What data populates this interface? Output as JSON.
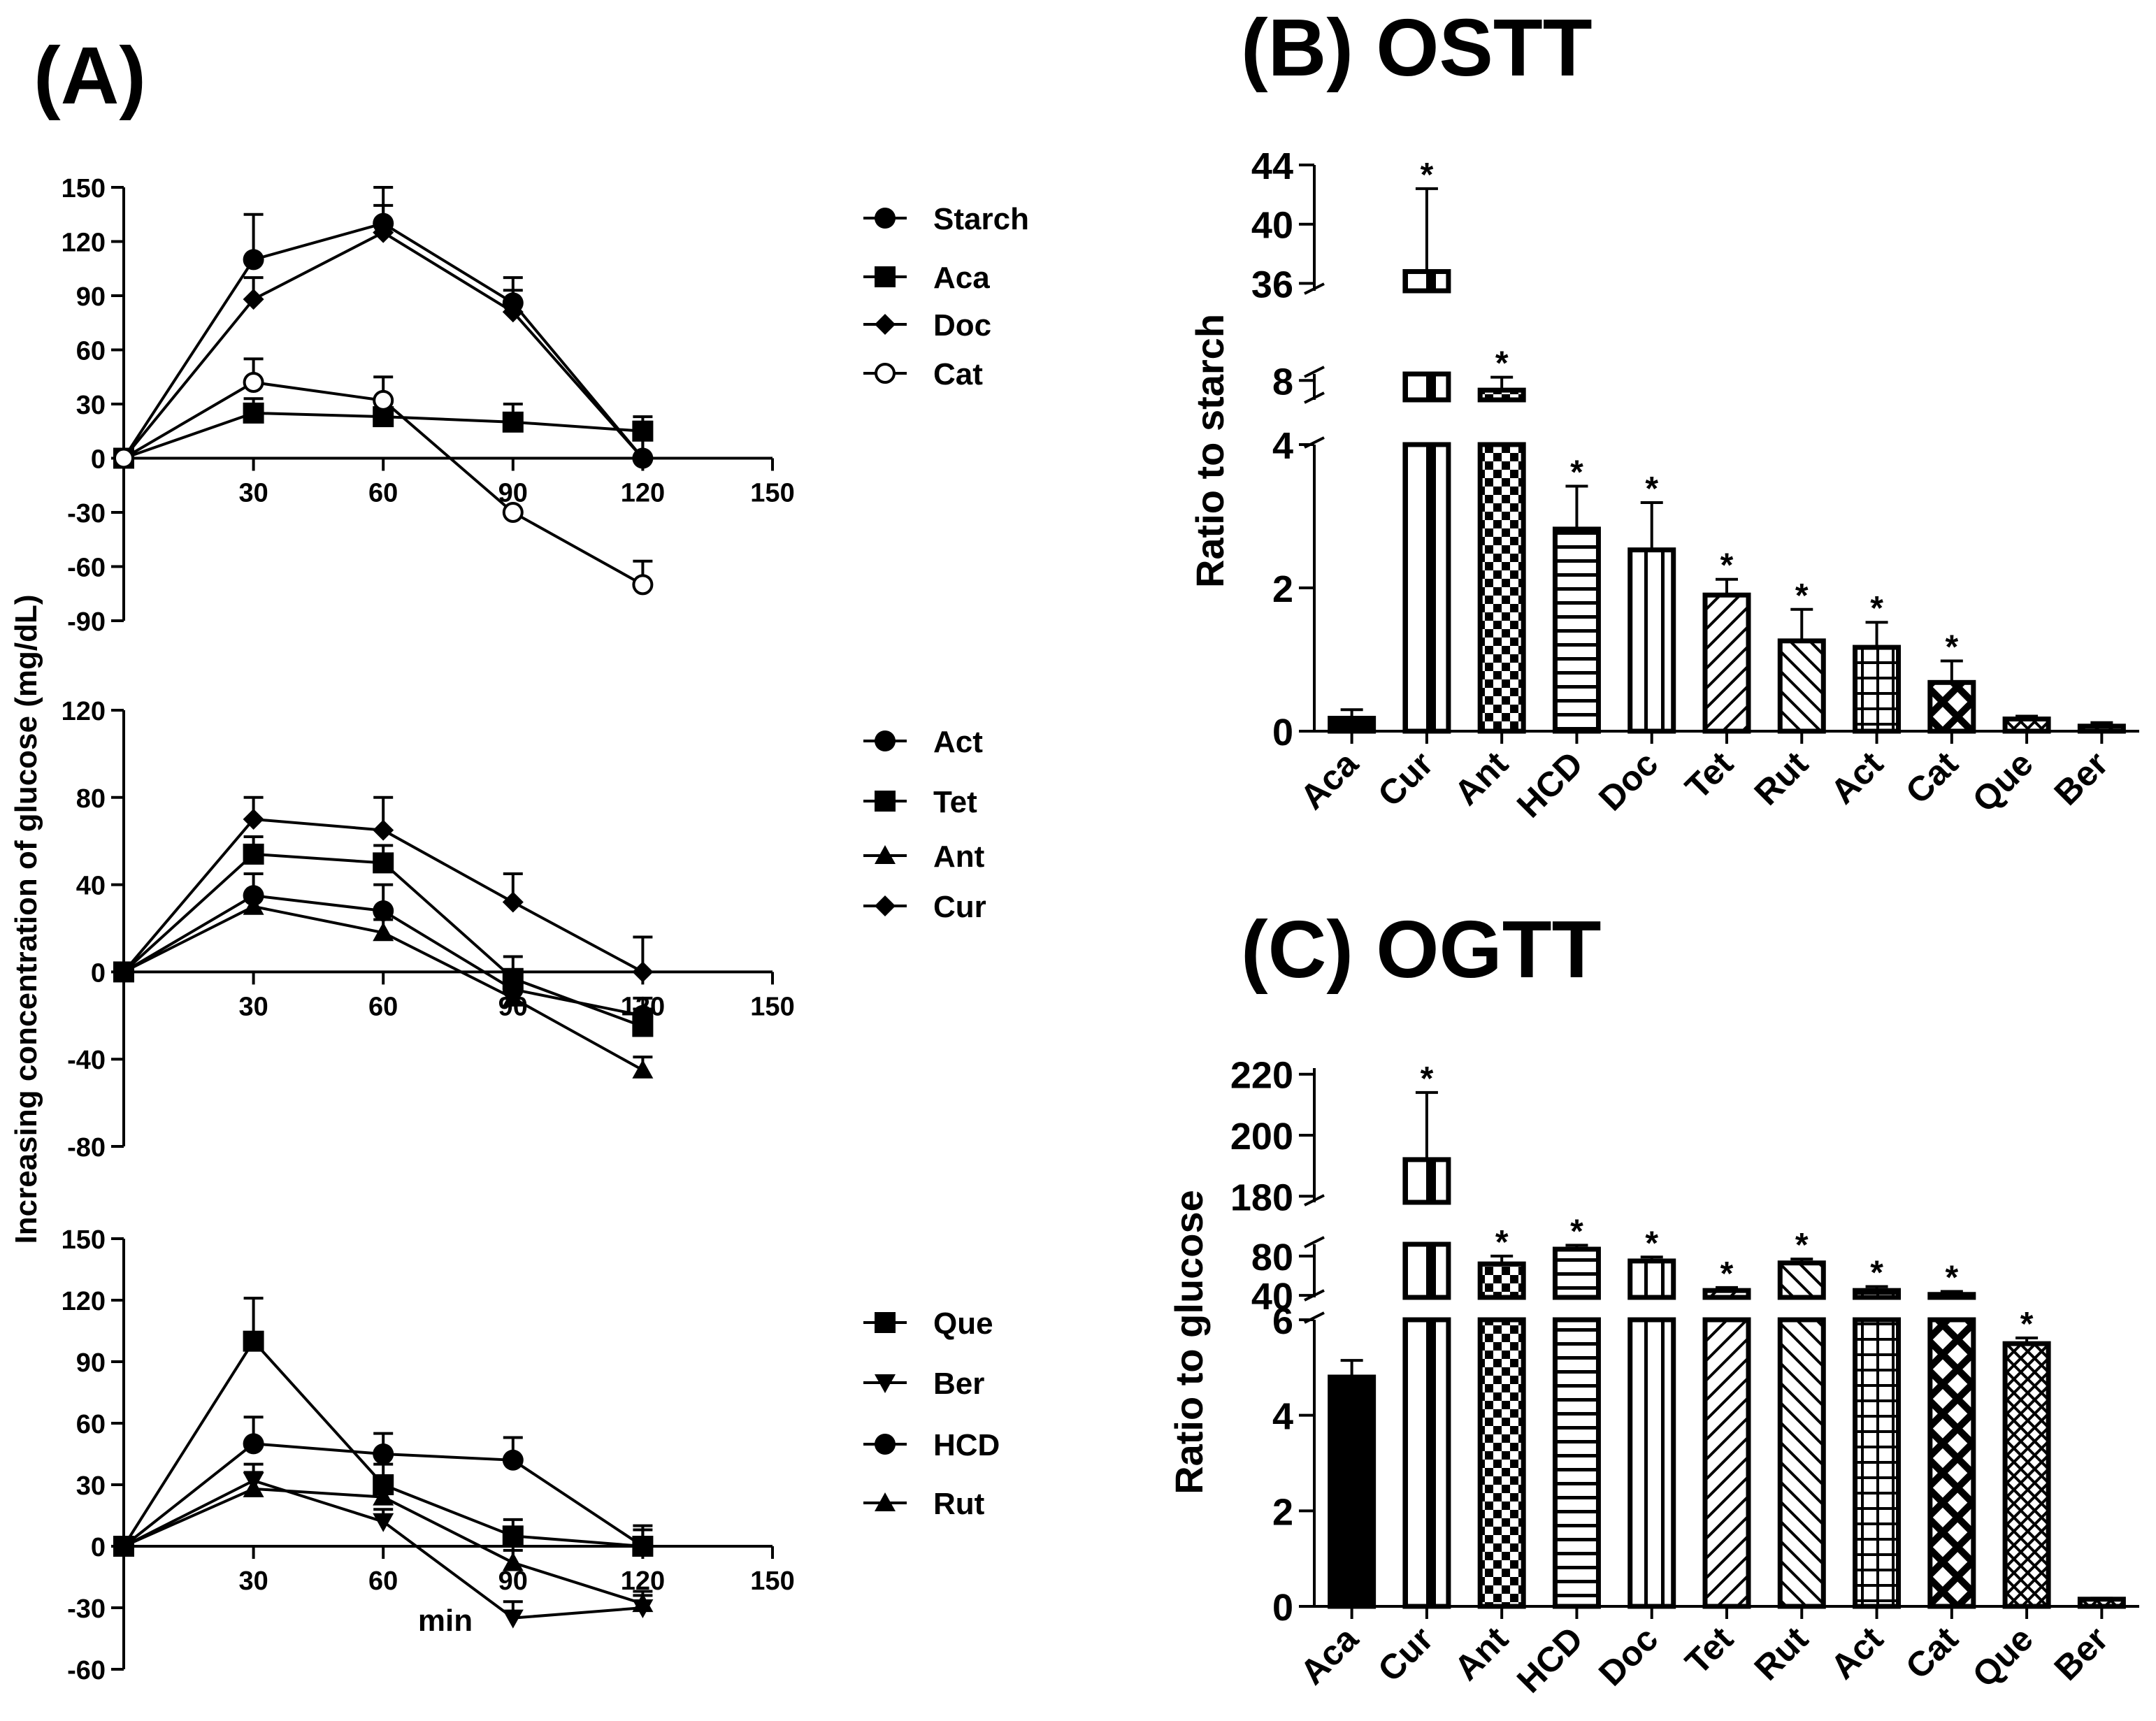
{
  "chart_data": [
    {
      "type": "line",
      "panel": "A",
      "title": "(A)",
      "ylabel": "Increasing concentration of glucose (mg/dL)",
      "xlabel": "min",
      "subplots": [
        {
          "ylim": [
            -90,
            150
          ],
          "yticks": [
            "150",
            "120",
            "90",
            "60",
            "30",
            "0",
            "-30",
            "-60",
            "-90"
          ],
          "xticks": [
            "30",
            "60",
            "90",
            "120",
            "150"
          ],
          "xlim": [
            0,
            150
          ],
          "x": [
            0,
            30,
            60,
            90,
            120
          ],
          "series": [
            {
              "name": "Starch",
              "marker": "circle",
              "values": [
                0,
                110,
                130,
                86,
                0
              ],
              "err": [
                0,
                25,
                20,
                14,
                20
              ]
            },
            {
              "name": "Aca",
              "marker": "square",
              "values": [
                0,
                25,
                23,
                20,
                15
              ],
              "err": [
                0,
                8,
                8,
                10,
                8
              ]
            },
            {
              "name": "Doc",
              "marker": "diamond",
              "values": [
                0,
                88,
                125,
                81,
                0
              ],
              "err": [
                0,
                12,
                15,
                12,
                12
              ]
            },
            {
              "name": "Cat",
              "marker": "open-circle",
              "values": [
                0,
                42,
                32,
                -30,
                -70
              ],
              "err": [
                0,
                13,
                13,
                0,
                13
              ]
            }
          ]
        },
        {
          "ylim": [
            -80,
            120
          ],
          "yticks": [
            "120",
            "80",
            "40",
            "0",
            "-40",
            "-80"
          ],
          "xticks": [
            "30",
            "60",
            "90",
            "120",
            "150"
          ],
          "xlim": [
            0,
            150
          ],
          "x": [
            0,
            30,
            60,
            90,
            120
          ],
          "series": [
            {
              "name": "Act",
              "marker": "circle",
              "values": [
                0,
                35,
                28,
                -8,
                -20
              ],
              "err": [
                0,
                10,
                12,
                8,
                8
              ]
            },
            {
              "name": "Tet",
              "marker": "square",
              "values": [
                0,
                54,
                50,
                -3,
                -25
              ],
              "err": [
                0,
                8,
                8,
                10,
                8
              ]
            },
            {
              "name": "Ant",
              "marker": "triangle-up",
              "values": [
                0,
                30,
                18,
                -12,
                -45
              ],
              "err": [
                0,
                6,
                6,
                6,
                6
              ]
            },
            {
              "name": "Cur",
              "marker": "diamond",
              "values": [
                0,
                70,
                65,
                32,
                0
              ],
              "err": [
                0,
                10,
                15,
                13,
                16
              ]
            }
          ]
        },
        {
          "ylim": [
            -60,
            150
          ],
          "yticks": [
            "150",
            "120",
            "90",
            "60",
            "30",
            "0",
            "-30",
            "-60"
          ],
          "xticks": [
            "30",
            "60",
            "90",
            "120",
            "150"
          ],
          "xlim": [
            0,
            150
          ],
          "x": [
            0,
            30,
            60,
            90,
            120
          ],
          "series": [
            {
              "name": "Que",
              "marker": "square",
              "values": [
                0,
                100,
                30,
                5,
                0
              ],
              "err": [
                0,
                21,
                10,
                8,
                10
              ]
            },
            {
              "name": "Ber",
              "marker": "triangle-down",
              "values": [
                0,
                32,
                12,
                -35,
                -30
              ],
              "err": [
                0,
                8,
                6,
                8,
                6
              ]
            },
            {
              "name": "HCD",
              "marker": "circle",
              "values": [
                0,
                50,
                45,
                42,
                0
              ],
              "err": [
                0,
                13,
                10,
                11,
                8
              ]
            },
            {
              "name": "Rut",
              "marker": "triangle-up",
              "values": [
                0,
                28,
                24,
                -8,
                -28
              ],
              "err": [
                0,
                8,
                6,
                6,
                6
              ]
            }
          ]
        }
      ]
    },
    {
      "type": "bar",
      "panel": "B",
      "title": "(B) OSTT",
      "ylabel": "Ratio to starch",
      "categories": [
        "Aca",
        "Cur",
        "Ant",
        "HCD",
        "Doc",
        "Tet",
        "Rut",
        "Act",
        "Cat",
        "Que",
        "Ber"
      ],
      "values": [
        0.18,
        36.8,
        7.1,
        2.82,
        2.53,
        1.9,
        1.26,
        1.17,
        0.68,
        0.17,
        0.07
      ],
      "errors": [
        0.12,
        5.6,
        1.2,
        0.6,
        0.66,
        0.22,
        0.44,
        0.35,
        0.3,
        0.04,
        0.05
      ],
      "significant": [
        "",
        "*",
        "*",
        "*",
        "*",
        "*",
        "*",
        "*",
        "*",
        "",
        ""
      ],
      "patterns": [
        "solid",
        "vertical",
        "checker",
        "horizontal",
        "vertical-dense",
        "diagonal",
        "diagonal-back",
        "grid",
        "diagonal-cross",
        "dense",
        "dense"
      ],
      "axis_segments": [
        {
          "range": [
            0,
            4
          ],
          "ticks": [
            "0",
            "2",
            "4"
          ],
          "tick_values": [
            0,
            2,
            4
          ]
        },
        {
          "range": [
            6.2,
            8.6
          ],
          "ticks": [
            "8"
          ],
          "tick_values": [
            8
          ]
        },
        {
          "range": [
            35.5,
            44
          ],
          "ticks": [
            "36",
            "40",
            "44"
          ],
          "tick_values": [
            36,
            40,
            44
          ]
        }
      ]
    },
    {
      "type": "bar",
      "panel": "C",
      "title": "(C) OGTT",
      "ylabel": "Ratio to glucose",
      "categories": [
        "Aca",
        "Cur",
        "Ant",
        "HCD",
        "Doc",
        "Tet",
        "Rut",
        "Act",
        "Cat",
        "Que",
        "Ber"
      ],
      "values": [
        4.8,
        192,
        72,
        87,
        75,
        45,
        73,
        45,
        41,
        5.5,
        0.15
      ],
      "errors": [
        0.35,
        22,
        8,
        4,
        4,
        3,
        4,
        4,
        3,
        0.12,
        0.02
      ],
      "significant": [
        "",
        "*",
        "*",
        "*",
        "*",
        "*",
        "*",
        "*",
        "*",
        "*",
        ""
      ],
      "patterns": [
        "solid",
        "vertical",
        "checker",
        "horizontal",
        "vertical-dense",
        "diagonal",
        "diagonal-back",
        "grid",
        "diagonal-cross",
        "dense",
        "dense"
      ],
      "axis_segments": [
        {
          "range": [
            0,
            6
          ],
          "ticks": [
            "0",
            "2",
            "4",
            "6"
          ],
          "tick_values": [
            0,
            2,
            4,
            6
          ]
        },
        {
          "range": [
            38,
            92
          ],
          "ticks": [
            "40",
            "80"
          ],
          "tick_values": [
            40,
            80
          ]
        },
        {
          "range": [
            178,
            222
          ],
          "ticks": [
            "180",
            "200",
            "220"
          ],
          "tick_values": [
            180,
            200,
            220
          ]
        }
      ]
    }
  ]
}
